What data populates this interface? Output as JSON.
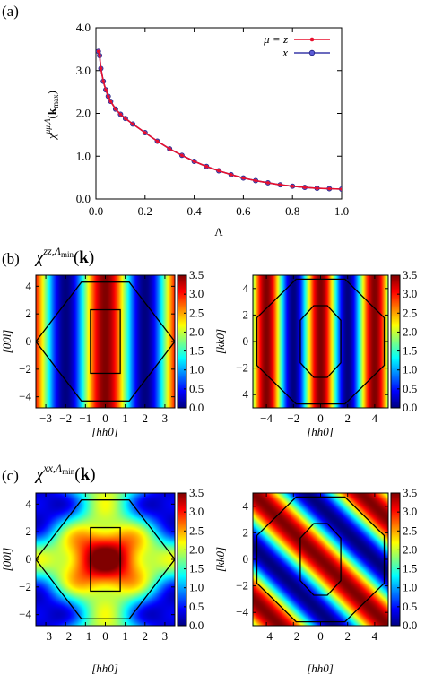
{
  "panel_a": {
    "label": "(a)",
    "ylabel": "χ^{μμ,Λ}(k_max)",
    "xlabel": "Λ",
    "chart_data": {
      "type": "line",
      "xlim": [
        0.0,
        1.0
      ],
      "ylim": [
        0.0,
        4.0
      ],
      "xticks": [
        "0.0",
        "0.2",
        "0.4",
        "0.6",
        "0.8",
        "1.0"
      ],
      "yticks": [
        "0.0",
        "1.0",
        "2.0",
        "3.0",
        "4.0"
      ],
      "legend_position": "top-right",
      "grid": false,
      "series": [
        {
          "name": "μ = z",
          "color": "#e8102e",
          "x": [
            0.01,
            0.015,
            0.02,
            0.03,
            0.04,
            0.05,
            0.06,
            0.08,
            0.1,
            0.12,
            0.15,
            0.2,
            0.25,
            0.3,
            0.35,
            0.4,
            0.45,
            0.5,
            0.55,
            0.6,
            0.65,
            0.7,
            0.75,
            0.8,
            0.85,
            0.9,
            0.95,
            1.0
          ],
          "y": [
            3.45,
            3.35,
            3.05,
            2.75,
            2.55,
            2.4,
            2.28,
            2.1,
            1.98,
            1.88,
            1.75,
            1.55,
            1.35,
            1.17,
            1.02,
            0.88,
            0.76,
            0.66,
            0.57,
            0.49,
            0.43,
            0.38,
            0.33,
            0.3,
            0.27,
            0.25,
            0.24,
            0.23
          ]
        },
        {
          "name": "x",
          "color": "#3a3aa8",
          "x": [
            0.01,
            0.015,
            0.02,
            0.03,
            0.04,
            0.05,
            0.06,
            0.08,
            0.1,
            0.12,
            0.15,
            0.2,
            0.25,
            0.3,
            0.35,
            0.4,
            0.45,
            0.5,
            0.55,
            0.6,
            0.65,
            0.7,
            0.75,
            0.8,
            0.85,
            0.9,
            0.95,
            1.0
          ],
          "y": [
            3.45,
            3.35,
            3.05,
            2.75,
            2.55,
            2.4,
            2.28,
            2.1,
            1.98,
            1.88,
            1.75,
            1.55,
            1.35,
            1.17,
            1.02,
            0.88,
            0.76,
            0.66,
            0.57,
            0.49,
            0.43,
            0.38,
            0.33,
            0.3,
            0.27,
            0.25,
            0.24,
            0.23
          ]
        }
      ]
    }
  },
  "panel_b": {
    "label": "(b)",
    "title": "χ^{zz,Λ_min}(k)",
    "left": {
      "chart_data": {
        "type": "heatmap",
        "xlabel": "[hh0]",
        "ylabel": "[00l]",
        "xlim": [
          -3.5,
          3.5
        ],
        "ylim": [
          -4.8,
          4.8
        ],
        "xticks": [
          "−3",
          "−2",
          "−1",
          "0",
          "1",
          "2",
          "3"
        ],
        "yticks": [
          "−4",
          "−2",
          "0",
          "2",
          "4"
        ],
        "pattern": "stripes along [00l], maximum at hh0 = 0, period 4",
        "zlim": [
          0.0,
          3.5
        ]
      }
    },
    "right": {
      "chart_data": {
        "type": "heatmap",
        "xlabel": "[hh0]",
        "ylabel": "[kk0]",
        "xlim": [
          -5,
          5
        ],
        "ylim": [
          -5,
          5
        ],
        "xticks": [
          "−4",
          "−2",
          "0",
          "2",
          "4"
        ],
        "yticks": [
          "−4",
          "−2",
          "0",
          "2",
          "4"
        ],
        "pattern": "stripes along [kk0], maximum at hh0 = 0, period 4",
        "zlim": [
          0.0,
          3.5
        ]
      }
    },
    "colorbar_ticks": [
      "0.0",
      "0.5",
      "1.0",
      "1.5",
      "2.0",
      "2.5",
      "3.0",
      "3.5"
    ]
  },
  "panel_c": {
    "label": "(c)",
    "title": "χ^{xx,Λ_min}(k)",
    "left": {
      "chart_data": {
        "type": "heatmap",
        "xlabel": "[hh0]",
        "ylabel": "[00l]",
        "xlim": [
          -3.5,
          3.5
        ],
        "ylim": [
          -4.8,
          4.8
        ],
        "xticks": [
          "−3",
          "−2",
          "−1",
          "0",
          "1",
          "2",
          "3"
        ],
        "yticks": [
          "−4",
          "−2",
          "0",
          "2",
          "4"
        ],
        "pattern": "maxima at (0,0) and corners, minima at (0,±4) and (±3.5,0)",
        "zlim": [
          0.0,
          3.5
        ]
      }
    },
    "right": {
      "chart_data": {
        "type": "heatmap",
        "xlabel": "[hh0]",
        "ylabel": "[kk0]",
        "xlim": [
          -5,
          5
        ],
        "ylim": [
          -5,
          5
        ],
        "xticks": [
          "−4",
          "−2",
          "0",
          "2",
          "4"
        ],
        "yticks": [
          "−4",
          "−2",
          "0",
          "2",
          "4"
        ],
        "pattern": "diagonal stripes, maximum along h + k = 0",
        "zlim": [
          0.0,
          3.5
        ]
      }
    },
    "colorbar_ticks": [
      "0.0",
      "0.5",
      "1.0",
      "1.5",
      "2.0",
      "2.5",
      "3.0",
      "3.5"
    ]
  }
}
